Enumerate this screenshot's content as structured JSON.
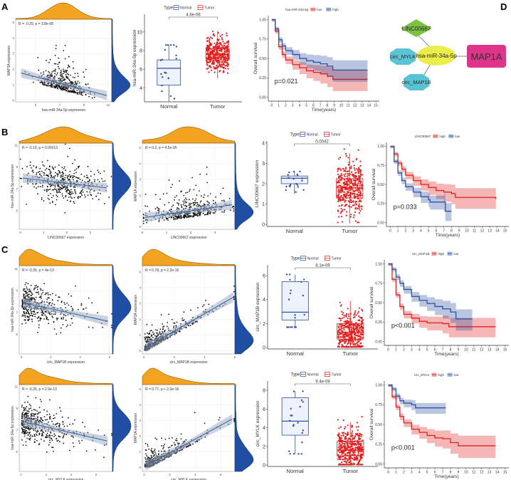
{
  "panel_labels": {
    "a": "A",
    "b": "B",
    "c": "C",
    "d": "D"
  },
  "network": {
    "nodes": {
      "lnc": "LINC00667",
      "mylk": "circ_MYLK",
      "map1b": "circ_MAP1B",
      "mir": "hsa-miR-34a-5p",
      "target": "MAP1A"
    },
    "colors": {
      "lnc": "#7cc242",
      "circ": "#5bc4d4",
      "mir": "#ecec4a",
      "target": "#e0338a"
    }
  },
  "colors": {
    "normal": "#2f4fa0",
    "tumor": "#e02020",
    "top_density": "#f2a31f",
    "right_density": "#1f4ea3",
    "km_high_A": "#2f4fa0",
    "km_low_A": "#e02020"
  },
  "chart_data": [
    {
      "type": "scatter",
      "id": "A1",
      "annotation": "R = -0.29, p = 3.8e-08",
      "xlabel": "hsa-miR-34a-5p expression",
      "ylabel": "MAP1A expression",
      "xlim": [
        3.35,
        11.3
      ],
      "ylim": [
        -0.1,
        5.2
      ],
      "xticks": [
        "5",
        "7",
        "9",
        "11"
      ],
      "yticks": [
        "0",
        "1",
        "2",
        "3",
        "4",
        "5"
      ],
      "fit": [
        [
          3.8,
          1.75
        ],
        [
          10.9,
          0.3
        ]
      ],
      "n": 420
    },
    {
      "type": "box",
      "id": "A2",
      "legend_title": "Type",
      "ylabel": "hsa-miR-34a-5p expression",
      "ylim": [
        2.5,
        11.9
      ],
      "yticks": [
        "4",
        "6",
        "8",
        "10"
      ],
      "p_label": "4.6e-06",
      "groups": [
        {
          "name": "Normal",
          "q1": 4.3,
          "median": 6.1,
          "q3": 7.0,
          "whisker_low": 2.5,
          "whisker_high": 8.6,
          "n": 20,
          "range": [
            2.5,
            8.6
          ]
        },
        {
          "name": "Tumor",
          "q1": 7.0,
          "median": 7.6,
          "q3": 8.2,
          "whisker_low": 5.0,
          "whisker_high": 10.1,
          "n": 400,
          "range": [
            3.6,
            10.8
          ]
        }
      ]
    },
    {
      "type": "km",
      "id": "A3",
      "legend_title": "hsa-miR-34a-5p",
      "xlabel": "Time(years)",
      "ylabel": "Overall survival",
      "p_label": "p=0.021",
      "xticks": [
        "0",
        "1",
        "2",
        "3",
        "4",
        "5",
        "6",
        "7",
        "8",
        "9",
        "10",
        "11",
        "12",
        "13",
        "14",
        "15"
      ],
      "yticks": [
        "0.00",
        "0.25",
        "0.50",
        "0.75",
        "1.00"
      ],
      "groups": [
        {
          "name": "low",
          "color": "#e02020",
          "curve": [
            [
              0,
              1
            ],
            [
              0.5,
              0.85
            ],
            [
              1,
              0.65
            ],
            [
              1.5,
              0.55
            ],
            [
              2,
              0.48
            ],
            [
              3,
              0.42
            ],
            [
              4,
              0.38
            ],
            [
              5,
              0.34
            ],
            [
              6,
              0.32
            ],
            [
              7,
              0.3
            ],
            [
              8,
              0.27
            ],
            [
              8.8,
              0.23
            ],
            [
              13.8,
              0.23
            ]
          ]
        },
        {
          "name": "high",
          "color": "#2f4fa0",
          "curve": [
            [
              0,
              1
            ],
            [
              0.5,
              0.88
            ],
            [
              1,
              0.74
            ],
            [
              1.5,
              0.66
            ],
            [
              2,
              0.6
            ],
            [
              3,
              0.55
            ],
            [
              4,
              0.5
            ],
            [
              5,
              0.47
            ],
            [
              6,
              0.45
            ],
            [
              7,
              0.43
            ],
            [
              8,
              0.4
            ],
            [
              8.8,
              0.35
            ],
            [
              13.8,
              0.35
            ]
          ]
        }
      ]
    },
    {
      "type": "scatter",
      "id": "B1",
      "annotation": "R = -0.19, p = 0.00013",
      "xlabel": "LINC00667 expression",
      "ylabel": "hsa-miR-34a-5p expression",
      "xlim": [
        -0.05,
        3.95
      ],
      "ylim": [
        3.3,
        11.2
      ],
      "xticks": [
        "0",
        "1",
        "2",
        "3"
      ],
      "yticks": [
        "5",
        "7",
        "9",
        "11"
      ],
      "fit": [
        [
          0.1,
          8.0
        ],
        [
          3.7,
          7.1
        ]
      ],
      "n": 420
    },
    {
      "type": "scatter",
      "id": "B2",
      "annotation": "R = 0.2, p = 4.5e-05",
      "xlabel": "LINC00667 expression",
      "ylabel": "MAP1A expression",
      "xlim": [
        0,
        3.82
      ],
      "ylim": [
        -0.15,
        5.3
      ],
      "xticks": [
        "0",
        "1",
        "2",
        "3"
      ],
      "yticks": [
        "0",
        "1",
        "2",
        "3",
        "4",
        "5"
      ],
      "fit": [
        [
          0.1,
          0.6
        ],
        [
          3.7,
          1.4
        ]
      ],
      "n": 420
    },
    {
      "type": "box",
      "id": "B3",
      "legend_title": "Type",
      "ylabel": "LINC00667 expression",
      "ylim": [
        -0.1,
        4.1
      ],
      "yticks": [
        "0",
        "1",
        "2",
        "3",
        "4"
      ],
      "p_label": "0.0042",
      "groups": [
        {
          "name": "Normal",
          "q1": 2.0,
          "median": 2.27,
          "q3": 2.38,
          "whisker_low": 1.5,
          "whisker_high": 2.6,
          "n": 20,
          "range": [
            1.3,
            2.6
          ]
        },
        {
          "name": "Tumor",
          "q1": 1.3,
          "median": 1.8,
          "q3": 2.25,
          "whisker_low": 0.05,
          "whisker_high": 3.5,
          "n": 400,
          "range": [
            0.1,
            3.7
          ]
        }
      ]
    },
    {
      "type": "km",
      "id": "B4",
      "legend_title": "LINC00667",
      "xlabel": "Time(years)",
      "ylabel": "Overall survival",
      "p_label": "p=0.033",
      "xticks": [
        "0",
        "1",
        "2",
        "3",
        "4",
        "5",
        "6",
        "7",
        "8",
        "9",
        "10",
        "11",
        "12",
        "13",
        "14",
        "15"
      ],
      "yticks": [
        "0.00",
        "0.25",
        "0.50",
        "0.75",
        "1.00"
      ],
      "groups": [
        {
          "name": "high",
          "color": "#e02020",
          "curve": [
            [
              0,
              1
            ],
            [
              0.5,
              0.9
            ],
            [
              1,
              0.78
            ],
            [
              1.5,
              0.7
            ],
            [
              2,
              0.62
            ],
            [
              3,
              0.55
            ],
            [
              4,
              0.5
            ],
            [
              5,
              0.46
            ],
            [
              6,
              0.42
            ],
            [
              7,
              0.4
            ],
            [
              8,
              0.38
            ],
            [
              8.5,
              0.33
            ],
            [
              13.8,
              0.31
            ]
          ]
        },
        {
          "name": "low",
          "color": "#2f4fa0",
          "curve": [
            [
              0,
              1
            ],
            [
              0.5,
              0.8
            ],
            [
              1,
              0.65
            ],
            [
              1.5,
              0.55
            ],
            [
              2,
              0.47
            ],
            [
              3,
              0.4
            ],
            [
              4,
              0.34
            ],
            [
              5,
              0.3
            ],
            [
              5.2,
              0.27
            ],
            [
              7,
              0.27
            ],
            [
              7.2,
              0.15
            ],
            [
              8,
              0.15
            ]
          ]
        }
      ]
    },
    {
      "type": "scatter",
      "id": "C1",
      "annotation": "R = -0.35, p = 4e-13",
      "xlabel": "circ_MAP1B expression",
      "ylabel": "hsa-miR-34a-5p expression",
      "xlim": [
        -0.15,
        6.2
      ],
      "ylim": [
        3.2,
        11.3
      ],
      "xticks": [
        "0",
        "2",
        "4",
        "6"
      ],
      "yticks": [
        "5",
        "7",
        "9",
        "11"
      ],
      "fit": [
        [
          0.1,
          7.9
        ],
        [
          5.9,
          6.2
        ]
      ],
      "n": 420
    },
    {
      "type": "scatter",
      "id": "C2",
      "annotation": "R = 0.78, p = 2.2e-16",
      "xlabel": "circ_MAP1B expression",
      "ylabel": "MAP1A expression",
      "xlim": [
        -0.1,
        6.0
      ],
      "ylim": [
        -0.2,
        5.4
      ],
      "xticks": [
        "0",
        "2",
        "4",
        "6"
      ],
      "yticks": [
        "0",
        "1",
        "2",
        "3",
        "4",
        "5"
      ],
      "fit": [
        [
          0.1,
          0.2
        ],
        [
          5.9,
          3.4
        ]
      ],
      "n": 420
    },
    {
      "type": "box",
      "id": "C3",
      "legend_title": "Type",
      "ylabel": "circ_MAP1B expression",
      "ylim": [
        -0.12,
        6.9
      ],
      "yticks": [
        "0",
        "2",
        "4",
        "6"
      ],
      "p_label": "8.1e-09",
      "groups": [
        {
          "name": "Normal",
          "q1": 2.3,
          "median": 2.95,
          "q3": 5.5,
          "whisker_low": 1.7,
          "whisker_high": 6.1,
          "n": 20,
          "range": [
            1.7,
            6.1
          ]
        },
        {
          "name": "Tumor",
          "q1": 0.7,
          "median": 1.25,
          "q3": 2.0,
          "whisker_low": 0.05,
          "whisker_high": 3.9,
          "n": 400,
          "range": [
            0.05,
            5.8
          ]
        }
      ]
    },
    {
      "type": "km",
      "id": "C4",
      "legend_title": "circ_MAP1B",
      "xlabel": "Time(years)",
      "ylabel": "Overall survival",
      "p_label": "p<0.001",
      "xticks": [
        "0",
        "1",
        "2",
        "3",
        "4",
        "5",
        "6",
        "7",
        "8",
        "9",
        "10",
        "11",
        "12",
        "13",
        "14",
        "15"
      ],
      "yticks": [
        "0.00",
        "0.25",
        "0.50",
        "0.75",
        "1.00"
      ],
      "groups": [
        {
          "name": "high",
          "color": "#e02020",
          "curve": [
            [
              0,
              1
            ],
            [
              0.5,
              0.8
            ],
            [
              1,
              0.6
            ],
            [
              1.5,
              0.45
            ],
            [
              2,
              0.35
            ],
            [
              3,
              0.3
            ],
            [
              4,
              0.26
            ],
            [
              5,
              0.24
            ],
            [
              7,
              0.23
            ],
            [
              7.8,
              0.19
            ],
            [
              13.8,
              0.19
            ]
          ]
        },
        {
          "name": "low",
          "color": "#2f4fa0",
          "curve": [
            [
              0,
              1
            ],
            [
              0.5,
              0.93
            ],
            [
              1,
              0.83
            ],
            [
              1.5,
              0.75
            ],
            [
              2,
              0.67
            ],
            [
              3,
              0.58
            ],
            [
              4,
              0.53
            ],
            [
              5,
              0.49
            ],
            [
              6,
              0.45
            ],
            [
              7,
              0.42
            ],
            [
              8,
              0.38
            ],
            [
              8.7,
              0.29
            ],
            [
              10.8,
              0.29
            ]
          ]
        }
      ]
    },
    {
      "type": "scatter",
      "id": "D1",
      "annotation": "R = -0.35, p = 2.9e-13",
      "xlabel": "circ_MYLK expression",
      "ylabel": "hsa-miR-34a-5p expression",
      "xlim": [
        -0.15,
        7.3
      ],
      "ylim": [
        3.2,
        11.2
      ],
      "xticks": [
        "0",
        "2",
        "4",
        "6"
      ],
      "yticks": [
        "5",
        "7",
        "9",
        "11"
      ],
      "fit": [
        [
          0.1,
          7.8
        ],
        [
          6.9,
          6.0
        ]
      ],
      "n": 420
    },
    {
      "type": "scatter",
      "id": "D2",
      "annotation": "R = 0.77, p < 2.2e-16",
      "xlabel": "circ_MYLK expression",
      "ylabel": "MAP1A expression",
      "xlim": [
        -0.15,
        7.1
      ],
      "ylim": [
        -0.25,
        5.3
      ],
      "xticks": [
        "0",
        "2",
        "4",
        "6"
      ],
      "yticks": [
        "0",
        "1",
        "2",
        "3",
        "4",
        "5"
      ],
      "fit": [
        [
          0.1,
          0.1
        ],
        [
          6.9,
          3.1
        ]
      ],
      "n": 420
    },
    {
      "type": "box",
      "id": "D3",
      "legend_title": "Type",
      "ylabel": "circ_MYLK expression",
      "ylim": [
        -0.15,
        9
      ],
      "yticks": [
        "0",
        "2",
        "4",
        "6",
        "8"
      ],
      "p_label": "9.4e-09",
      "groups": [
        {
          "name": "Normal",
          "q1": 3.2,
          "median": 4.7,
          "q3": 7.2,
          "whisker_low": 1.2,
          "whisker_high": 7.9,
          "n": 20,
          "range": [
            1.2,
            7.9
          ]
        },
        {
          "name": "Tumor",
          "q1": 1.0,
          "median": 1.6,
          "q3": 2.55,
          "whisker_low": 0.05,
          "whisker_high": 4.6,
          "n": 400,
          "range": [
            0.05,
            6.9
          ]
        }
      ]
    },
    {
      "type": "km",
      "id": "D4",
      "legend_title": "circ_MYLK",
      "xlabel": "Time(years)",
      "ylabel": "Overall survival",
      "p_label": "p<0.001",
      "xticks": [
        "0",
        "1",
        "2",
        "3",
        "4",
        "5",
        "6",
        "7",
        "8",
        "9",
        "10",
        "11",
        "12",
        "13",
        "14",
        "15"
      ],
      "yticks": [
        "0.00",
        "0.25",
        "0.50",
        "0.75",
        "1.00"
      ],
      "groups": [
        {
          "name": "high",
          "color": "#e02020",
          "curve": [
            [
              0,
              1
            ],
            [
              0.5,
              0.85
            ],
            [
              1,
              0.72
            ],
            [
              1.5,
              0.6
            ],
            [
              2,
              0.52
            ],
            [
              3,
              0.44
            ],
            [
              4,
              0.4
            ],
            [
              5,
              0.36
            ],
            [
              6,
              0.33
            ],
            [
              7,
              0.32
            ],
            [
              8,
              0.27
            ],
            [
              9,
              0.23
            ],
            [
              13.8,
              0.23
            ]
          ]
        },
        {
          "name": "low",
          "color": "#2f4fa0",
          "curve": [
            [
              0,
              1
            ],
            [
              0.5,
              0.95
            ],
            [
              1,
              0.86
            ],
            [
              1.5,
              0.8
            ],
            [
              2,
              0.77
            ],
            [
              3,
              0.75
            ],
            [
              3.5,
              0.71
            ],
            [
              7.4,
              0.71
            ]
          ]
        }
      ]
    }
  ]
}
